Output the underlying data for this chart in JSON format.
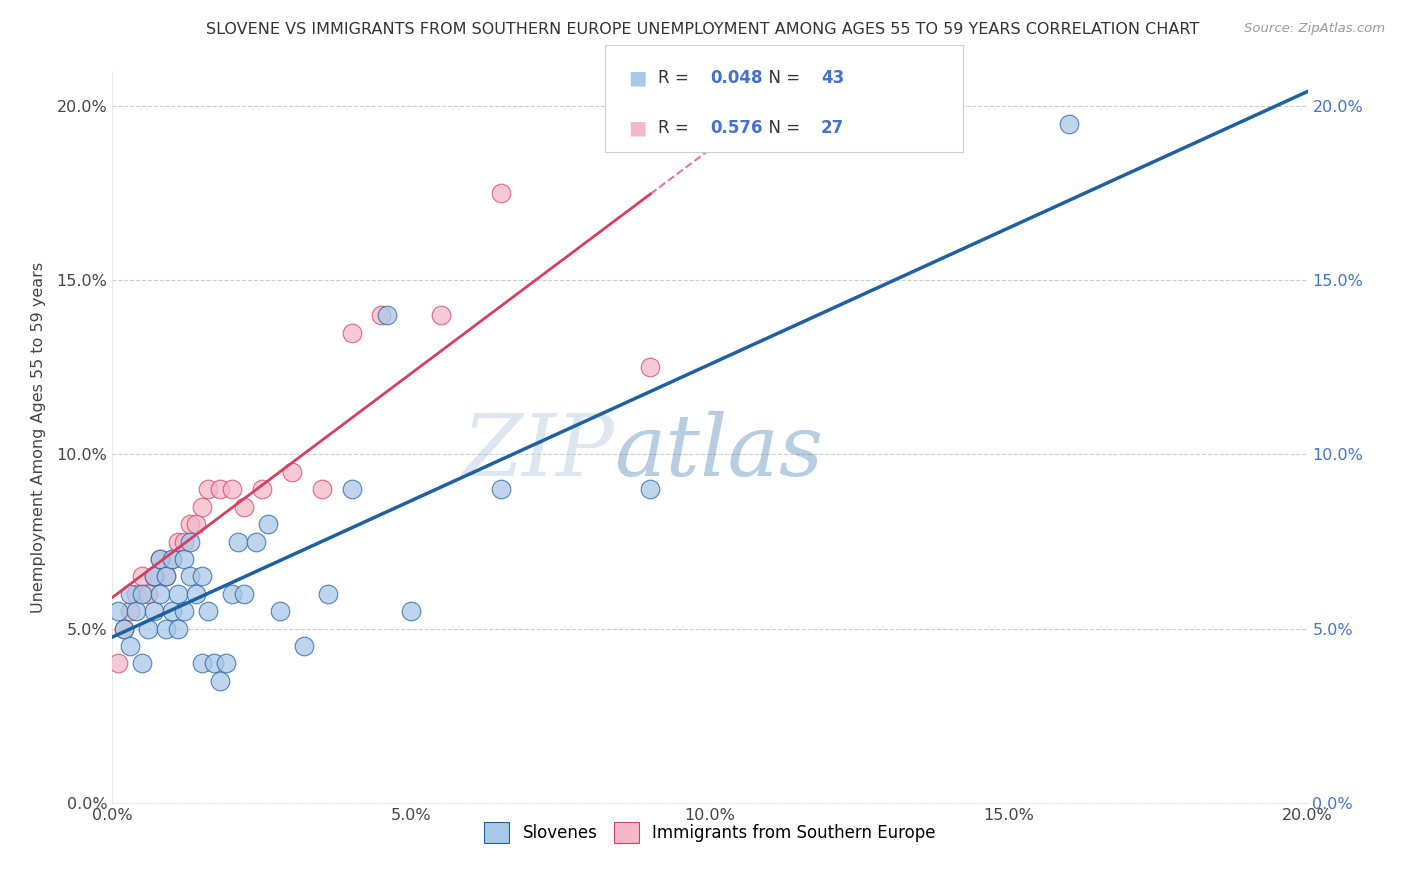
{
  "title": "SLOVENE VS IMMIGRANTS FROM SOUTHERN EUROPE UNEMPLOYMENT AMONG AGES 55 TO 59 YEARS CORRELATION CHART",
  "source": "Source: ZipAtlas.com",
  "ylabel_label": "Unemployment Among Ages 55 to 59 years",
  "xmin": 0.0,
  "xmax": 0.2,
  "ymin": 0.0,
  "ymax": 0.21,
  "legend_label1": "Slovenes",
  "legend_label2": "Immigrants from Southern Europe",
  "R1": "0.048",
  "N1": "43",
  "R2": "0.576",
  "N2": "27",
  "color_blue": "#a8c8e8",
  "color_pink": "#f4b8c8",
  "color_line_blue": "#2060a0",
  "color_line_pink": "#d04060",
  "watermark_zip": "ZIP",
  "watermark_atlas": "atlas",
  "slovenes_x": [
    0.001,
    0.002,
    0.003,
    0.003,
    0.004,
    0.005,
    0.005,
    0.006,
    0.007,
    0.007,
    0.008,
    0.008,
    0.009,
    0.009,
    0.01,
    0.01,
    0.011,
    0.011,
    0.012,
    0.012,
    0.013,
    0.013,
    0.014,
    0.015,
    0.015,
    0.016,
    0.017,
    0.018,
    0.019,
    0.02,
    0.021,
    0.022,
    0.024,
    0.026,
    0.028,
    0.032,
    0.036,
    0.04,
    0.046,
    0.05,
    0.065,
    0.09,
    0.16
  ],
  "slovenes_y": [
    0.055,
    0.05,
    0.045,
    0.06,
    0.055,
    0.04,
    0.06,
    0.05,
    0.055,
    0.065,
    0.06,
    0.07,
    0.05,
    0.065,
    0.055,
    0.07,
    0.05,
    0.06,
    0.055,
    0.07,
    0.065,
    0.075,
    0.06,
    0.04,
    0.065,
    0.055,
    0.04,
    0.035,
    0.04,
    0.06,
    0.075,
    0.06,
    0.075,
    0.08,
    0.055,
    0.045,
    0.06,
    0.09,
    0.14,
    0.055,
    0.09,
    0.09,
    0.195
  ],
  "immigrants_x": [
    0.001,
    0.002,
    0.003,
    0.004,
    0.005,
    0.006,
    0.007,
    0.008,
    0.009,
    0.01,
    0.011,
    0.012,
    0.013,
    0.014,
    0.015,
    0.016,
    0.018,
    0.02,
    0.022,
    0.025,
    0.03,
    0.035,
    0.04,
    0.045,
    0.055,
    0.065,
    0.09
  ],
  "immigrants_y": [
    0.04,
    0.05,
    0.055,
    0.06,
    0.065,
    0.06,
    0.065,
    0.07,
    0.065,
    0.07,
    0.075,
    0.075,
    0.08,
    0.08,
    0.085,
    0.09,
    0.09,
    0.09,
    0.085,
    0.09,
    0.095,
    0.09,
    0.135,
    0.14,
    0.14,
    0.175,
    0.125
  ]
}
